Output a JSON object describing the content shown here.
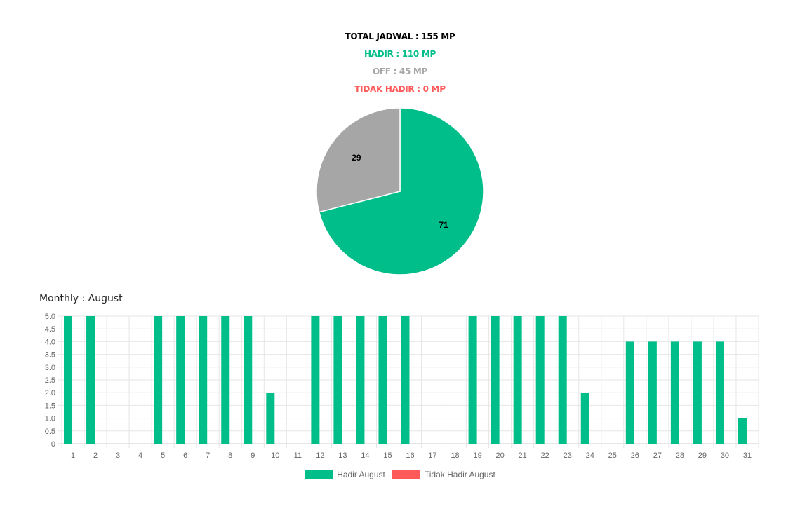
{
  "summary": {
    "total": "TOTAL JADWAL : 155 MP",
    "hadir": "HADIR : 110 MP",
    "off": "OFF : 45 MP",
    "tidak_hadir": "TIDAK HADIR : 0 MP"
  },
  "colors": {
    "total": "#000000",
    "hadir": "#00be89",
    "off": "#a6a6a6",
    "tidak_hadir": "#ff5a5a",
    "grid": "#e6e6e6",
    "tick": "#666666"
  },
  "monthly_title": "Monthly : August",
  "legend": {
    "hadir": "Hadir August",
    "tidak_hadir": "Tidak Hadir August"
  },
  "chart_data": [
    {
      "type": "pie",
      "slices": [
        {
          "label": "",
          "value": 71,
          "color": "#00be89"
        },
        {
          "label": "",
          "value": 29,
          "color": "#a6a6a6"
        }
      ],
      "data_labels": [
        "71",
        "29"
      ]
    },
    {
      "type": "bar",
      "categories": [
        "1",
        "2",
        "3",
        "4",
        "5",
        "6",
        "7",
        "8",
        "9",
        "10",
        "11",
        "12",
        "13",
        "14",
        "15",
        "16",
        "17",
        "18",
        "19",
        "20",
        "21",
        "22",
        "23",
        "24",
        "25",
        "26",
        "27",
        "28",
        "29",
        "30",
        "31"
      ],
      "series": [
        {
          "name": "Hadir August",
          "color": "#00be89",
          "values": [
            5,
            5,
            0,
            0,
            5,
            5,
            5,
            5,
            5,
            2,
            0,
            5,
            5,
            5,
            5,
            5,
            0,
            0,
            5,
            5,
            5,
            5,
            5,
            2,
            0,
            4,
            4,
            4,
            4,
            4,
            1
          ]
        },
        {
          "name": "Tidak Hadir August",
          "color": "#ff5a5a",
          "values": [
            0,
            0,
            0,
            0,
            0,
            0,
            0,
            0,
            0,
            0,
            0,
            0,
            0,
            0,
            0,
            0,
            0,
            0,
            0,
            0,
            0,
            0,
            0,
            0,
            0,
            0,
            0,
            0,
            0,
            0,
            0
          ]
        }
      ],
      "yticks": [
        "0",
        "0.5",
        "1.0",
        "1.5",
        "2.0",
        "2.5",
        "3.0",
        "3.5",
        "4.0",
        "4.5",
        "5.0"
      ],
      "ylim": [
        0,
        5
      ],
      "grid": true,
      "legend_position": "bottom"
    }
  ]
}
